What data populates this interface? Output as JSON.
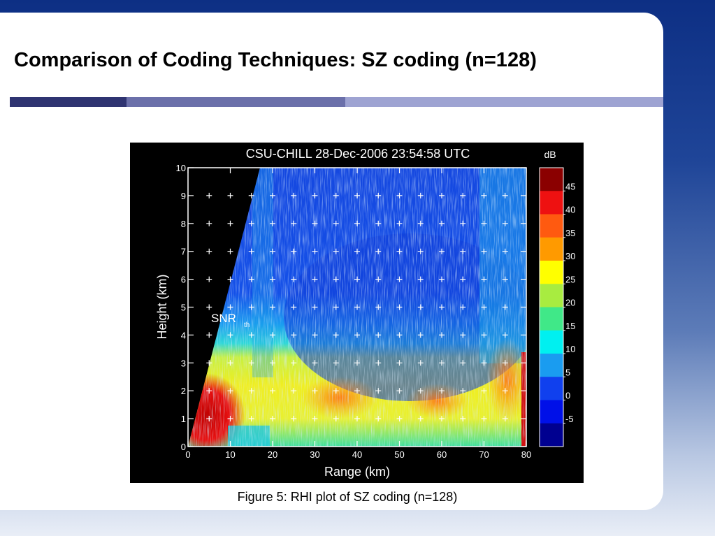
{
  "slide": {
    "title": "Comparison of Coding Techniques: SZ coding (n=128)",
    "caption": "Figure 5: RHI plot of SZ coding (n=128)"
  },
  "chart_data": {
    "type": "heatmap",
    "title": "CSU-CHILL  28-Dec-2006 23:54:58 UTC",
    "xlabel": "Range (km)",
    "ylabel": "Height (km)",
    "xlim": [
      0,
      80
    ],
    "ylim": [
      0,
      10
    ],
    "x_ticks": [
      "0",
      "10",
      "20",
      "30",
      "40",
      "50",
      "60",
      "70",
      "80"
    ],
    "y_ticks": [
      "0",
      "1",
      "2",
      "3",
      "4",
      "5",
      "6",
      "7",
      "8",
      "9",
      "10"
    ],
    "annotation": "SNR",
    "annotation_sub": "th",
    "colorbar": {
      "unit": "dB",
      "tick_labels": [
        "45",
        "40",
        "35",
        "30",
        "25",
        "20",
        "15",
        "10",
        "5",
        "0",
        "-5"
      ],
      "colors": [
        "#8b0000",
        "#ee1111",
        "#ff5a10",
        "#ff9a00",
        "#ffff00",
        "#a8ec40",
        "#40e888",
        "#00f0f0",
        "#1a9cf0",
        "#1040ee",
        "#0010e8",
        "#000090"
      ]
    },
    "grid": "plus markers",
    "field_description": [
      {
        "region": "0-5 km height near range 0-12 km",
        "level_dB": "40-45"
      },
      {
        "region": "1-3.5 km height",
        "level_dB": "20-35"
      },
      {
        "region": "3.5-10 km height",
        "level_dB": "0-10"
      }
    ]
  }
}
